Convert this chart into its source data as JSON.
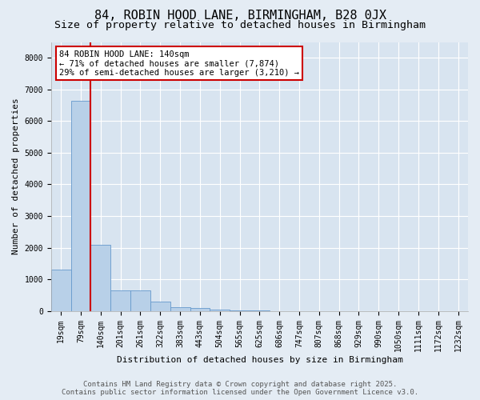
{
  "title": "84, ROBIN HOOD LANE, BIRMINGHAM, B28 0JX",
  "subtitle": "Size of property relative to detached houses in Birmingham",
  "xlabel": "Distribution of detached houses by size in Birmingham",
  "ylabel": "Number of detached properties",
  "categories": [
    "19sqm",
    "79sqm",
    "140sqm",
    "201sqm",
    "261sqm",
    "322sqm",
    "383sqm",
    "443sqm",
    "504sqm",
    "565sqm",
    "625sqm",
    "686sqm",
    "747sqm",
    "807sqm",
    "868sqm",
    "929sqm",
    "990sqm",
    "1050sqm",
    "1111sqm",
    "1172sqm",
    "1232sqm"
  ],
  "values": [
    1300,
    6650,
    2100,
    660,
    645,
    290,
    125,
    95,
    45,
    25,
    10,
    0,
    0,
    0,
    0,
    0,
    0,
    0,
    0,
    0,
    0
  ],
  "bar_color": "#b8d0e8",
  "bar_edge_color": "#6699cc",
  "red_line_index": 2,
  "red_line_color": "#cc0000",
  "annotation_box_text": "84 ROBIN HOOD LANE: 140sqm\n← 71% of detached houses are smaller (7,874)\n29% of semi-detached houses are larger (3,210) →",
  "annotation_box_color": "#cc0000",
  "annotation_box_fill": "#ffffff",
  "footer_line1": "Contains HM Land Registry data © Crown copyright and database right 2025.",
  "footer_line2": "Contains public sector information licensed under the Open Government Licence v3.0.",
  "background_color": "#e4ecf4",
  "plot_background_color": "#d8e4f0",
  "ylim": [
    0,
    8500
  ],
  "yticks": [
    0,
    1000,
    2000,
    3000,
    4000,
    5000,
    6000,
    7000,
    8000
  ],
  "title_fontsize": 11,
  "subtitle_fontsize": 9.5,
  "ylabel_fontsize": 8,
  "xlabel_fontsize": 8,
  "tick_fontsize": 7,
  "footer_fontsize": 6.5,
  "grid_color": "#ffffff",
  "annot_fontsize": 7.5
}
